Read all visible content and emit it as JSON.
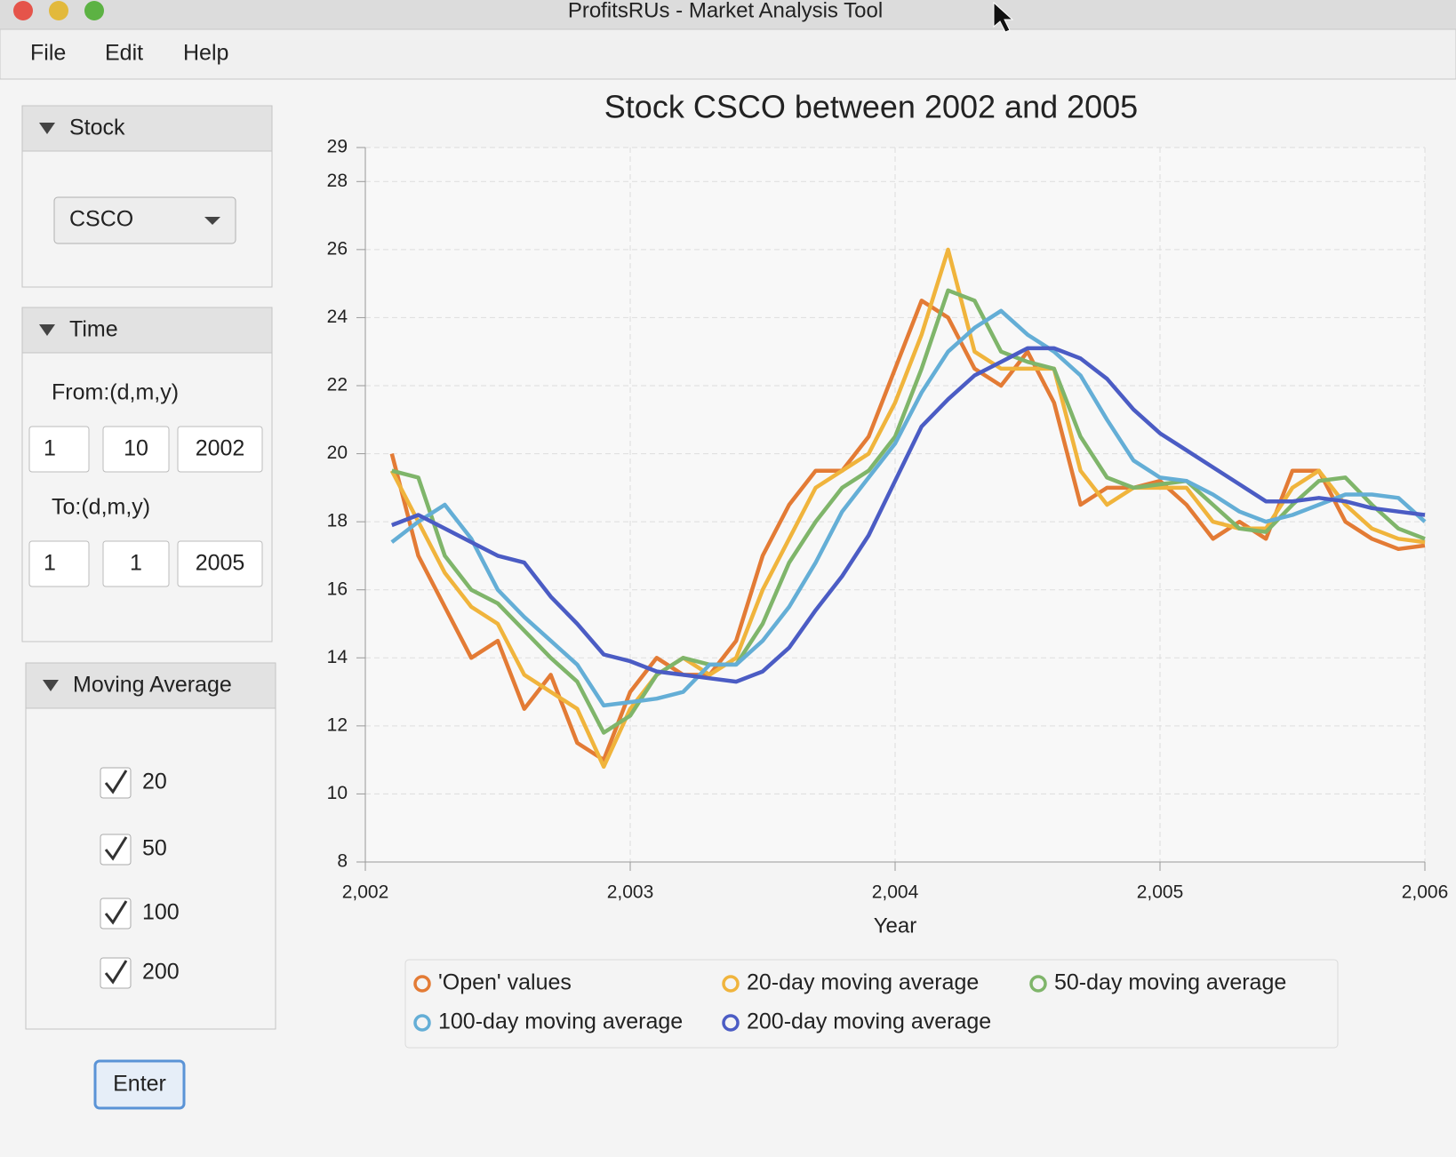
{
  "window": {
    "title": "ProfitsRUs - Market Analysis Tool"
  },
  "menu": [
    "File",
    "Edit",
    "Help"
  ],
  "stock_panel": {
    "title": "Stock",
    "selected": "CSCO"
  },
  "time_panel": {
    "title": "Time",
    "from_label": "From:(d,m,y)",
    "from": [
      "1",
      "10",
      "2002"
    ],
    "to_label": "To:(d,m,y)",
    "to": [
      "1",
      "1",
      "2005"
    ]
  },
  "moving_average_panel": {
    "title": "Moving Average",
    "options": [
      {
        "label": "20",
        "checked": true
      },
      {
        "label": "50",
        "checked": true
      },
      {
        "label": "100",
        "checked": true
      },
      {
        "label": "200",
        "checked": true
      }
    ]
  },
  "button": "Enter",
  "chart_data": {
    "type": "line",
    "title": "Stock CSCO between 2002 and 2005",
    "x_label": "Year",
    "x": [
      2002.1,
      2002.2,
      2002.3,
      2002.4,
      2002.5,
      2002.6,
      2002.7,
      2002.8,
      2002.9,
      2003.0,
      2003.1,
      2003.2,
      2003.3,
      2003.4,
      2003.5,
      2003.6,
      2003.7,
      2003.8,
      2003.9,
      2004.0,
      2004.1,
      2004.2,
      2004.3,
      2004.4,
      2004.5,
      2004.6,
      2004.7,
      2004.8,
      2004.9,
      2005.0,
      2005.1,
      2005.2,
      2005.3,
      2005.4,
      2005.5,
      2005.6,
      2005.7,
      2005.8,
      2005.9,
      2006.0
    ],
    "series": [
      {
        "name": "'Open' values",
        "color": "#e37b35",
        "values": [
          20,
          17,
          15.5,
          14,
          14.5,
          12.5,
          13.5,
          11.5,
          11,
          13,
          14,
          13.5,
          13.5,
          14.5,
          17,
          18.5,
          19.5,
          19.5,
          20.5,
          22.5,
          24.5,
          24,
          22.5,
          22,
          23,
          21.5,
          18.5,
          19,
          19,
          19.2,
          18.5,
          17.5,
          18,
          17.5,
          19.5,
          19.5,
          18,
          17.5,
          17.2,
          17.3
        ]
      },
      {
        "name": "20-day moving average",
        "color": "#f0b43c",
        "values": [
          19.5,
          18,
          16.5,
          15.5,
          15,
          13.5,
          13,
          12.5,
          10.8,
          12.5,
          13.5,
          14,
          13.5,
          14,
          16,
          17.5,
          19,
          19.5,
          20,
          21.5,
          23.5,
          26,
          23,
          22.5,
          22.5,
          22.5,
          19.5,
          18.5,
          19,
          19,
          19,
          18,
          17.8,
          17.8,
          19,
          19.5,
          18.5,
          17.8,
          17.5,
          17.4
        ]
      },
      {
        "name": "50-day moving average",
        "color": "#7fb56a",
        "values": [
          19.5,
          19.3,
          17,
          16,
          15.6,
          14.8,
          14,
          13.3,
          11.8,
          12.3,
          13.5,
          14,
          13.8,
          13.8,
          15,
          16.8,
          18,
          19,
          19.5,
          20.5,
          22.5,
          24.8,
          24.5,
          23,
          22.7,
          22.5,
          20.5,
          19.3,
          19,
          19.1,
          19.2,
          18.5,
          17.8,
          17.7,
          18.5,
          19.2,
          19.3,
          18.5,
          17.8,
          17.5
        ]
      },
      {
        "name": "100-day moving average",
        "color": "#64aed6",
        "values": [
          17.4,
          18,
          18.5,
          17.5,
          16,
          15.2,
          14.5,
          13.8,
          12.6,
          12.7,
          12.8,
          13,
          13.8,
          13.8,
          14.5,
          15.5,
          16.8,
          18.3,
          19.3,
          20.3,
          21.8,
          23,
          23.7,
          24.2,
          23.5,
          23,
          22.3,
          21,
          19.8,
          19.3,
          19.2,
          18.8,
          18.3,
          18,
          18.2,
          18.5,
          18.8,
          18.8,
          18.7,
          18
        ]
      },
      {
        "name": "200-day moving average",
        "color": "#4b5cc4",
        "values": [
          17.9,
          18.2,
          17.8,
          17.4,
          17,
          16.8,
          15.8,
          15,
          14.1,
          13.9,
          13.6,
          13.5,
          13.4,
          13.3,
          13.6,
          14.3,
          15.4,
          16.4,
          17.6,
          19.2,
          20.8,
          21.6,
          22.3,
          22.7,
          23.1,
          23.1,
          22.8,
          22.2,
          21.3,
          20.6,
          20.1,
          19.6,
          19.1,
          18.6,
          18.6,
          18.7,
          18.6,
          18.4,
          18.3,
          18.2
        ]
      }
    ],
    "xlim": [
      2002,
      2006
    ],
    "xticks": [
      {
        "value": 2002,
        "label": "2,002"
      },
      {
        "value": 2003,
        "label": "2,003"
      },
      {
        "value": 2004,
        "label": "2,004"
      },
      {
        "value": 2005,
        "label": "2,005"
      },
      {
        "value": 2006,
        "label": "2,006"
      }
    ],
    "ylim": [
      8,
      29
    ],
    "yticks": [
      8,
      10,
      12,
      14,
      16,
      18,
      20,
      22,
      24,
      26,
      28,
      29
    ],
    "grid": true
  }
}
